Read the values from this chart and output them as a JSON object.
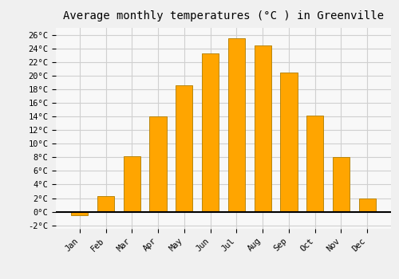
{
  "title": "Average monthly temperatures (°C ) in Greenville",
  "months": [
    "Jan",
    "Feb",
    "Mar",
    "Apr",
    "May",
    "Jun",
    "Jul",
    "Aug",
    "Sep",
    "Oct",
    "Nov",
    "Dec"
  ],
  "values": [
    -0.5,
    2.3,
    8.1,
    14.0,
    18.6,
    23.3,
    25.5,
    24.4,
    20.4,
    14.1,
    8.0,
    2.0
  ],
  "bar_color": "#FFA500",
  "bar_edge_color": "#B8860B",
  "ylim": [
    -2.5,
    27
  ],
  "yticks": [
    -2,
    0,
    2,
    4,
    6,
    8,
    10,
    12,
    14,
    16,
    18,
    20,
    22,
    24,
    26
  ],
  "ytick_labels": [
    "-2°C",
    "0°C",
    "2°C",
    "4°C",
    "6°C",
    "8°C",
    "10°C",
    "12°C",
    "14°C",
    "16°C",
    "18°C",
    "20°C",
    "22°C",
    "24°C",
    "26°C"
  ],
  "background_color": "#f0f0f0",
  "plot_bg_color": "#f8f8f8",
  "grid_color": "#d0d0d0",
  "title_fontsize": 10,
  "tick_fontsize": 7.5,
  "bar_width": 0.65
}
